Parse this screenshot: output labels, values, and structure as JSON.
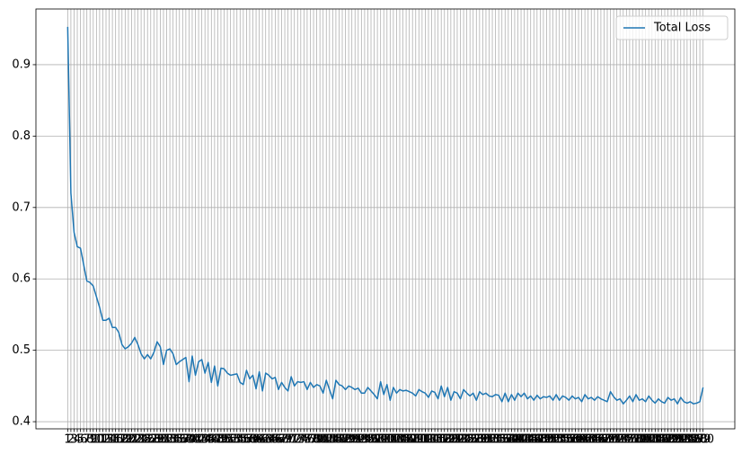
{
  "chart_data": {
    "type": "line",
    "x": [
      1,
      2,
      3,
      4,
      5,
      6,
      7,
      8,
      9,
      10,
      11,
      12,
      13,
      14,
      15,
      16,
      17,
      18,
      19,
      20,
      21,
      22,
      23,
      24,
      25,
      26,
      27,
      28,
      29,
      30,
      31,
      32,
      33,
      34,
      35,
      36,
      37,
      38,
      39,
      40,
      41,
      42,
      43,
      44,
      45,
      46,
      47,
      48,
      49,
      50,
      51,
      52,
      53,
      54,
      55,
      56,
      57,
      58,
      59,
      60,
      61,
      62,
      63,
      64,
      65,
      66,
      67,
      68,
      69,
      70,
      71,
      72,
      73,
      74,
      75,
      76,
      77,
      78,
      79,
      80,
      81,
      82,
      83,
      84,
      85,
      86,
      87,
      88,
      89,
      90,
      91,
      92,
      93,
      94,
      95,
      96,
      97,
      98,
      99,
      100,
      101,
      102,
      103,
      104,
      105,
      106,
      107,
      108,
      109,
      110,
      111,
      112,
      113,
      114,
      115,
      116,
      117,
      118,
      119,
      120,
      121,
      122,
      123,
      124,
      125,
      126,
      127,
      128,
      129,
      130,
      131,
      132,
      133,
      134,
      135,
      136,
      137,
      138,
      139,
      140,
      141,
      142,
      143,
      144,
      145,
      146,
      147,
      148,
      149,
      150,
      151,
      152,
      153,
      154,
      155,
      156,
      157,
      158,
      159,
      160,
      161,
      162,
      163,
      164,
      165,
      166,
      167,
      168,
      169,
      170,
      171,
      172,
      173,
      174,
      175,
      176,
      177,
      178,
      179,
      180,
      181,
      182,
      183,
      184,
      185,
      186,
      187,
      188,
      189,
      190,
      191,
      192,
      193,
      194,
      195,
      196,
      197,
      198,
      199,
      200
    ],
    "series": [
      {
        "name": "Total Loss",
        "color": "#1f77b4",
        "values": [
          0.953,
          0.72,
          0.665,
          0.645,
          0.643,
          0.62,
          0.597,
          0.595,
          0.59,
          0.575,
          0.56,
          0.542,
          0.542,
          0.545,
          0.532,
          0.532,
          0.525,
          0.508,
          0.502,
          0.505,
          0.51,
          0.518,
          0.508,
          0.495,
          0.488,
          0.494,
          0.488,
          0.497,
          0.512,
          0.505,
          0.48,
          0.5,
          0.502,
          0.495,
          0.48,
          0.484,
          0.487,
          0.49,
          0.456,
          0.492,
          0.465,
          0.484,
          0.487,
          0.468,
          0.483,
          0.455,
          0.478,
          0.45,
          0.475,
          0.474,
          0.468,
          0.465,
          0.466,
          0.467,
          0.455,
          0.452,
          0.472,
          0.46,
          0.465,
          0.446,
          0.47,
          0.443,
          0.468,
          0.465,
          0.46,
          0.462,
          0.445,
          0.455,
          0.448,
          0.443,
          0.463,
          0.45,
          0.456,
          0.455,
          0.456,
          0.445,
          0.455,
          0.448,
          0.452,
          0.45,
          0.44,
          0.458,
          0.445,
          0.432,
          0.458,
          0.452,
          0.45,
          0.445,
          0.45,
          0.448,
          0.445,
          0.447,
          0.44,
          0.44,
          0.448,
          0.443,
          0.438,
          0.432,
          0.456,
          0.438,
          0.452,
          0.43,
          0.448,
          0.44,
          0.445,
          0.443,
          0.444,
          0.442,
          0.44,
          0.436,
          0.445,
          0.442,
          0.44,
          0.434,
          0.443,
          0.441,
          0.432,
          0.45,
          0.435,
          0.448,
          0.43,
          0.442,
          0.44,
          0.432,
          0.445,
          0.44,
          0.436,
          0.44,
          0.43,
          0.442,
          0.438,
          0.44,
          0.436,
          0.435,
          0.438,
          0.437,
          0.428,
          0.44,
          0.428,
          0.438,
          0.43,
          0.44,
          0.435,
          0.44,
          0.432,
          0.436,
          0.43,
          0.437,
          0.432,
          0.435,
          0.434,
          0.436,
          0.43,
          0.438,
          0.43,
          0.436,
          0.434,
          0.43,
          0.436,
          0.432,
          0.434,
          0.428,
          0.438,
          0.432,
          0.434,
          0.43,
          0.435,
          0.432,
          0.43,
          0.428,
          0.442,
          0.435,
          0.43,
          0.432,
          0.425,
          0.43,
          0.436,
          0.428,
          0.438,
          0.43,
          0.432,
          0.428,
          0.436,
          0.43,
          0.426,
          0.432,
          0.428,
          0.426,
          0.434,
          0.43,
          0.432,
          0.425,
          0.434,
          0.428,
          0.426,
          0.428,
          0.425,
          0.426,
          0.428,
          0.448
        ]
      }
    ],
    "xlim": [
      -8.95,
      209.95
    ],
    "xticks": [
      1,
      2,
      3,
      4,
      5,
      6,
      7,
      8,
      9,
      10,
      11,
      12,
      13,
      14,
      15,
      16,
      17,
      18,
      19,
      20,
      21,
      22,
      23,
      24,
      25,
      26,
      27,
      28,
      29,
      30,
      31,
      32,
      33,
      34,
      35,
      36,
      37,
      38,
      39,
      40,
      41,
      42,
      43,
      44,
      45,
      46,
      47,
      48,
      49,
      50,
      51,
      52,
      53,
      54,
      55,
      56,
      57,
      58,
      59,
      60,
      61,
      62,
      63,
      64,
      65,
      66,
      67,
      68,
      69,
      70,
      71,
      72,
      73,
      74,
      75,
      76,
      77,
      78,
      79,
      80,
      81,
      82,
      83,
      84,
      85,
      86,
      87,
      88,
      89,
      90,
      91,
      92,
      93,
      94,
      95,
      96,
      97,
      98,
      99,
      100,
      101,
      102,
      103,
      104,
      105,
      106,
      107,
      108,
      109,
      110,
      111,
      112,
      113,
      114,
      115,
      116,
      117,
      118,
      119,
      120,
      121,
      122,
      123,
      124,
      125,
      126,
      127,
      128,
      129,
      130,
      131,
      132,
      133,
      134,
      135,
      136,
      137,
      138,
      139,
      140,
      141,
      142,
      143,
      144,
      145,
      146,
      147,
      148,
      149,
      150,
      151,
      152,
      153,
      154,
      155,
      156,
      157,
      158,
      159,
      160,
      161,
      162,
      163,
      164,
      165,
      166,
      167,
      168,
      169,
      170,
      171,
      172,
      173,
      174,
      175,
      176,
      177,
      178,
      179,
      180,
      181,
      182,
      183,
      184,
      185,
      186,
      187,
      188,
      189,
      190,
      191,
      192,
      193,
      194,
      195,
      196,
      197,
      198,
      199,
      200
    ],
    "ylim": [
      0.39,
      0.978
    ],
    "yticks": [
      0.4,
      0.5,
      0.6,
      0.7,
      0.8,
      0.9
    ],
    "grid": true,
    "legend": "upper right"
  }
}
